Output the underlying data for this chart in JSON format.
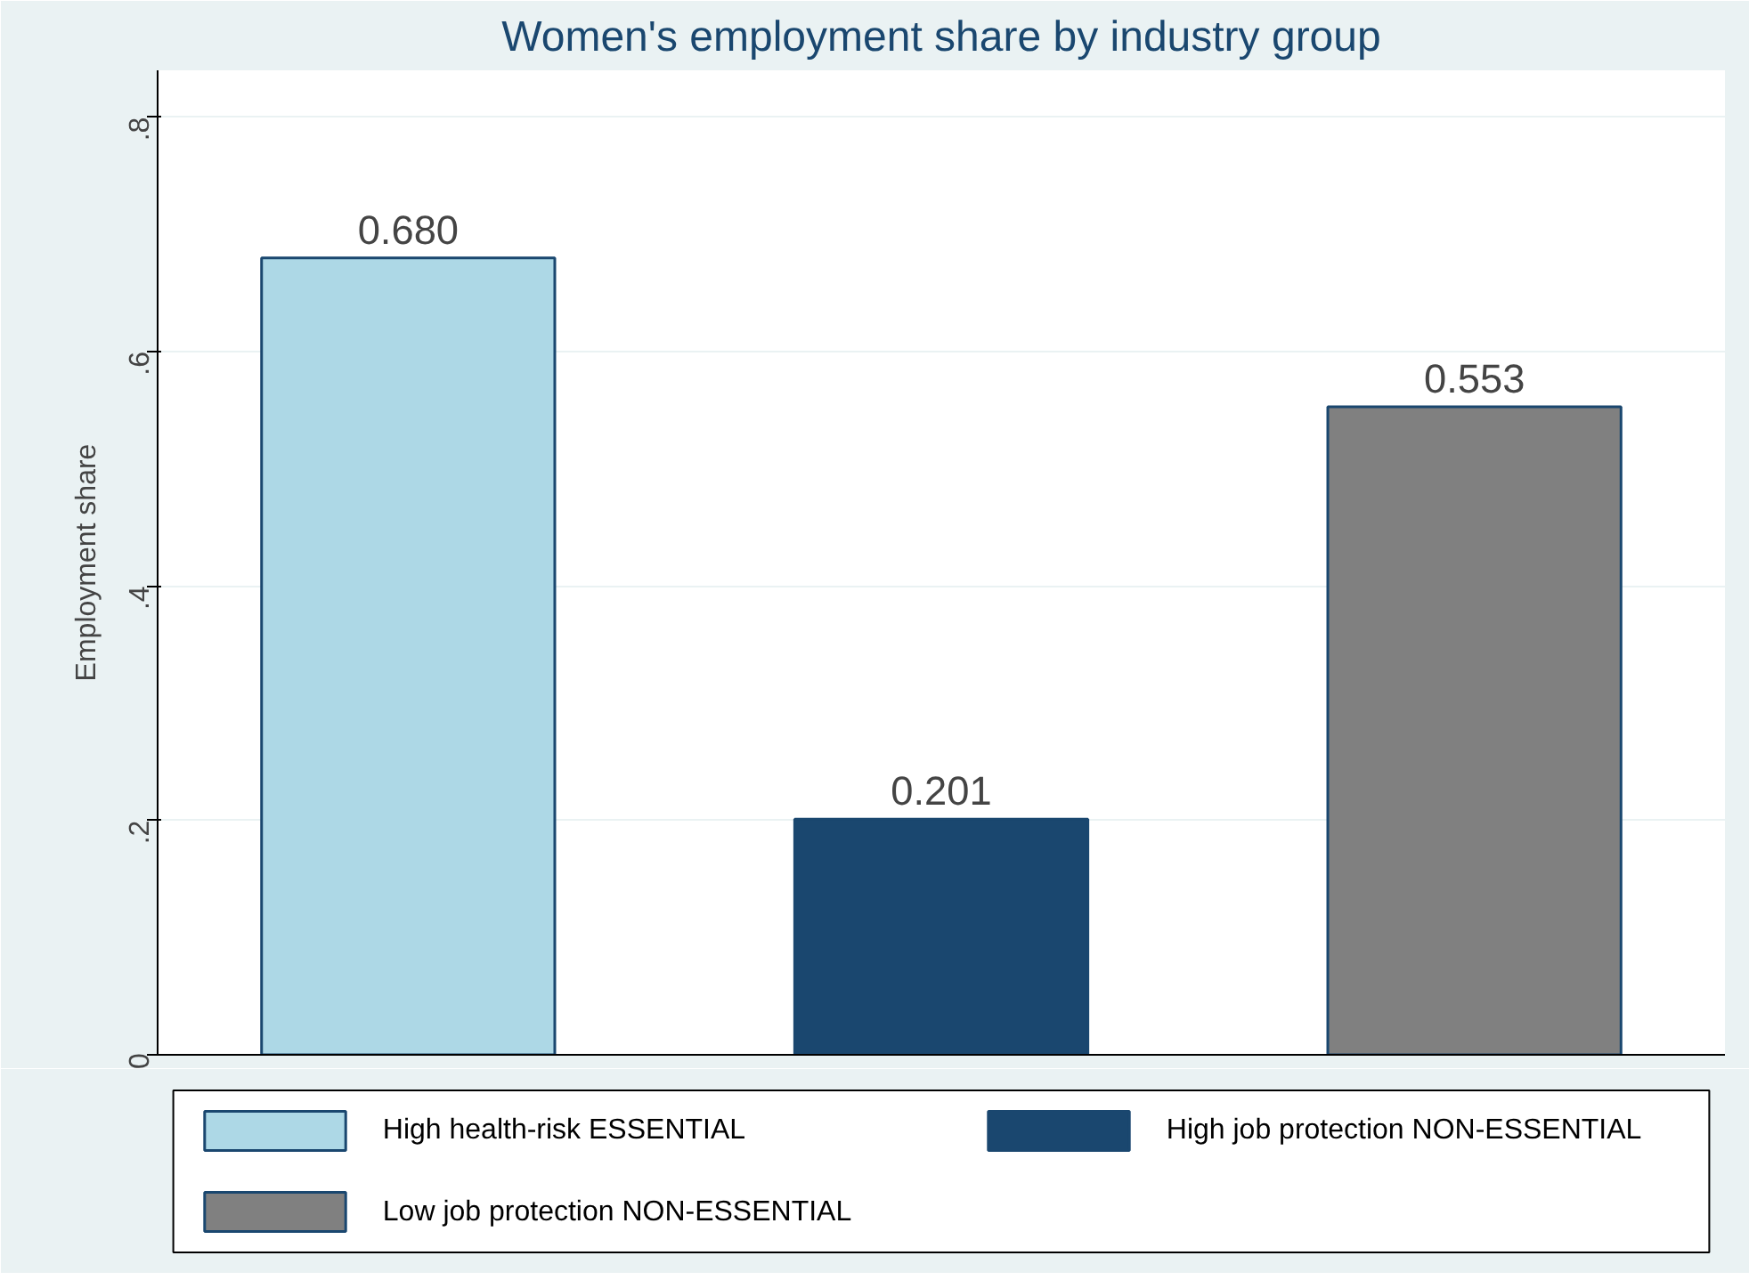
{
  "chart_data": {
    "type": "bar",
    "title": "Women's employment share by industry group",
    "ylabel": "Employment share",
    "categories": [
      null,
      null,
      null
    ],
    "series": [
      {
        "name": "High health-risk ESSENTIAL",
        "color": "#add8e6",
        "values": [
          0.68,
          null,
          null
        ],
        "value_labels": [
          "0.680",
          null,
          null
        ]
      },
      {
        "name": "High job protection NON-ESSENTIAL",
        "color": "#1a476f",
        "values": [
          null,
          0.201,
          null
        ],
        "value_labels": [
          null,
          "0.201",
          null
        ]
      },
      {
        "name": "Low job protection NON-ESSENTIAL",
        "color": "#808080",
        "values": [
          null,
          null,
          0.553
        ],
        "value_labels": [
          null,
          null,
          "0.553"
        ]
      }
    ],
    "ylim": [
      0,
      0.84
    ],
    "yticks": [
      {
        "value": 0,
        "label": "0"
      },
      {
        "value": 0.2,
        "label": ".2"
      },
      {
        "value": 0.4,
        "label": ".4"
      },
      {
        "value": 0.6,
        "label": ".6"
      },
      {
        "value": 0.8,
        "label": ".8"
      }
    ],
    "grid": "y",
    "legend": "bottom"
  }
}
